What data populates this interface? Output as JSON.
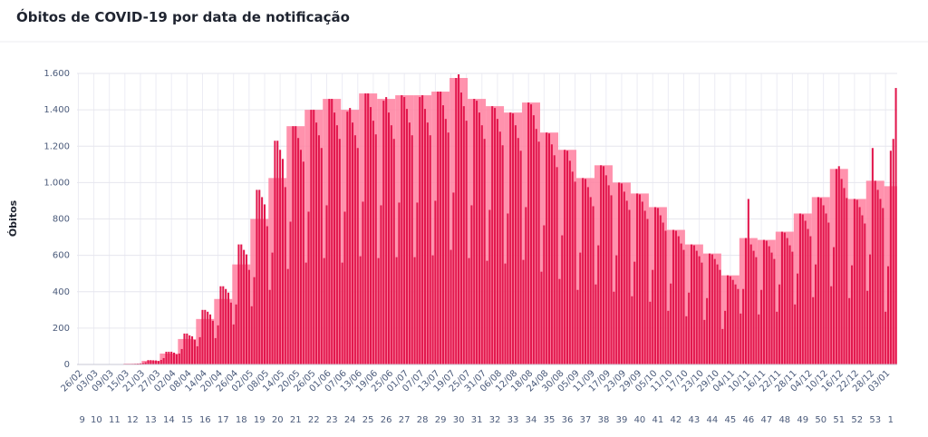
{
  "chart_data": {
    "type": "bar",
    "title": "Óbitos de COVID-19 por data de notificação",
    "y_label": "Óbitos",
    "ylim": [
      0,
      1600
    ],
    "yticks": [
      0,
      200,
      400,
      600,
      800,
      {
        "value": 1000,
        "label": "1.000"
      },
      {
        "value": 1200,
        "label": "1.200"
      },
      {
        "value": 1400,
        "label": "1.400"
      },
      {
        "value": 1600,
        "label": "1.600"
      }
    ],
    "grid": true,
    "categories": [
      "26/02",
      null,
      null,
      null,
      null,
      null,
      "03/03",
      null,
      null,
      null,
      null,
      null,
      "09/03",
      null,
      null,
      null,
      null,
      null,
      "15/03",
      null,
      null,
      null,
      null,
      null,
      "21/03",
      null,
      null,
      null,
      null,
      null,
      "27/03",
      null,
      null,
      null,
      null,
      null,
      "02/04",
      null,
      null,
      null,
      null,
      null,
      "08/04",
      null,
      null,
      null,
      null,
      null,
      "14/04",
      null,
      null,
      null,
      null,
      null,
      "20/04",
      null,
      null,
      null,
      null,
      null,
      "26/04",
      null,
      null,
      null,
      null,
      null,
      "02/05",
      null,
      null,
      null,
      null,
      null,
      "08/05",
      null,
      null,
      null,
      null,
      null,
      "14/05",
      null,
      null,
      null,
      null,
      null,
      "20/05",
      null,
      null,
      null,
      null,
      null,
      "26/05",
      null,
      null,
      null,
      null,
      null,
      "01/06",
      null,
      null,
      null,
      null,
      null,
      "07/06",
      null,
      null,
      null,
      null,
      null,
      "13/06",
      null,
      null,
      null,
      null,
      null,
      "19/06",
      null,
      null,
      null,
      null,
      null,
      "25/06",
      null,
      null,
      null,
      null,
      null,
      "01/07",
      null,
      null,
      null,
      null,
      null,
      "07/07",
      null,
      null,
      null,
      null,
      null,
      "13/07",
      null,
      null,
      null,
      null,
      null,
      "19/07",
      null,
      null,
      null,
      null,
      null,
      "25/07",
      null,
      null,
      null,
      null,
      null,
      "31/07",
      null,
      null,
      null,
      null,
      null,
      "06/08",
      null,
      null,
      null,
      null,
      null,
      "12/08",
      null,
      null,
      null,
      null,
      null,
      "18/08",
      null,
      null,
      null,
      null,
      null,
      "24/08",
      null,
      null,
      null,
      null,
      null,
      "30/08",
      null,
      null,
      null,
      null,
      null,
      "05/09",
      null,
      null,
      null,
      null,
      null,
      "11/09",
      null,
      null,
      null,
      null,
      null,
      "17/09",
      null,
      null,
      null,
      null,
      null,
      "23/09",
      null,
      null,
      null,
      null,
      null,
      "29/09",
      null,
      null,
      null,
      null,
      null,
      "05/10",
      null,
      null,
      null,
      null,
      null,
      "11/10",
      null,
      null,
      null,
      null,
      null,
      "17/10",
      null,
      null,
      null,
      null,
      null,
      "23/10",
      null,
      null,
      null,
      null,
      null,
      "29/10",
      null,
      null,
      null,
      null,
      null,
      "04/11",
      null,
      null,
      null,
      null,
      null,
      "10/11",
      null,
      null,
      null,
      null,
      null,
      "16/11",
      null,
      null,
      null,
      null,
      null,
      "22/11",
      null,
      null,
      null,
      null,
      null,
      "28/11",
      null,
      null,
      null,
      null,
      null,
      "04/12",
      null,
      null,
      null,
      null,
      null,
      "10/12",
      null,
      null,
      null,
      null,
      null,
      "16/12",
      null,
      null,
      null,
      null,
      null,
      "22/12",
      null,
      null,
      null,
      null,
      null,
      "28/12",
      null,
      null,
      null,
      null,
      null,
      "03/01",
      null,
      null,
      null,
      null
    ],
    "values": [
      0,
      0,
      0,
      0,
      0,
      0,
      0,
      0,
      0,
      0,
      0,
      0,
      0,
      0,
      0,
      0,
      0,
      0,
      0,
      1,
      2,
      3,
      4,
      5,
      6,
      8,
      12,
      24,
      24,
      23,
      22,
      19,
      25,
      35,
      70,
      70,
      70,
      65,
      55,
      60,
      85,
      170,
      170,
      160,
      155,
      135,
      100,
      150,
      300,
      300,
      290,
      275,
      240,
      145,
      215,
      430,
      430,
      415,
      395,
      340,
      220,
      330,
      660,
      660,
      630,
      605,
      520,
      320,
      480,
      960,
      960,
      920,
      880,
      760,
      410,
      615,
      1230,
      1230,
      1180,
      1130,
      975,
      525,
      785,
      1310,
      1310,
      1245,
      1180,
      1115,
      560,
      840,
      1400,
      1400,
      1330,
      1260,
      1190,
      585,
      875,
      1460,
      1460,
      1385,
      1315,
      1240,
      560,
      840,
      1390,
      1410,
      1330,
      1260,
      1190,
      595,
      895,
      1490,
      1490,
      1415,
      1340,
      1265,
      585,
      875,
      1450,
      1470,
      1385,
      1315,
      1240,
      590,
      890,
      1480,
      1470,
      1405,
      1330,
      1260,
      590,
      890,
      1470,
      1480,
      1405,
      1330,
      1260,
      600,
      900,
      1500,
      1500,
      1425,
      1350,
      1275,
      630,
      945,
      1575,
      1595,
      1495,
      1420,
      1340,
      585,
      875,
      1460,
      1450,
      1385,
      1315,
      1240,
      570,
      850,
      1420,
      1410,
      1350,
      1280,
      1205,
      555,
      830,
      1385,
      1380,
      1315,
      1245,
      1175,
      575,
      865,
      1440,
      1430,
      1370,
      1295,
      1225,
      510,
      765,
      1275,
      1270,
      1210,
      1150,
      1085,
      470,
      710,
      1180,
      1175,
      1120,
      1060,
      1005,
      410,
      615,
      1025,
      1020,
      975,
      920,
      870,
      440,
      655,
      1095,
      1090,
      1040,
      985,
      930,
      400,
      600,
      1000,
      995,
      950,
      900,
      850,
      375,
      565,
      940,
      935,
      895,
      845,
      800,
      345,
      520,
      865,
      860,
      820,
      780,
      735,
      295,
      445,
      740,
      735,
      705,
      665,
      630,
      265,
      395,
      660,
      655,
      625,
      595,
      560,
      245,
      365,
      610,
      605,
      580,
      550,
      520,
      195,
      295,
      490,
      485,
      465,
      440,
      415,
      280,
      415,
      695,
      910,
      660,
      625,
      590,
      275,
      410,
      685,
      680,
      650,
      615,
      580,
      290,
      440,
      730,
      725,
      695,
      655,
      620,
      330,
      500,
      830,
      825,
      790,
      745,
      705,
      370,
      550,
      920,
      915,
      875,
      830,
      780,
      430,
      645,
      1075,
      1090,
      1020,
      970,
      915,
      365,
      545,
      910,
      905,
      865,
      820,
      775,
      405,
      605,
      1190,
      1010,
      960,
      910,
      860,
      290,
      540,
      1175,
      1240,
      1520
    ],
    "color": "#e2174d",
    "weekly": {
      "categories": [
        "9",
        "10",
        "11",
        "12",
        "13",
        "14",
        "15",
        "16",
        "17",
        "18",
        "19",
        "20",
        "21",
        "22",
        "23",
        "24",
        "25",
        "26",
        "27",
        "28",
        "29",
        "30",
        "31",
        "32",
        "33",
        "34",
        "35",
        "36",
        "37",
        "38",
        "39",
        "40",
        "41",
        "42",
        "43",
        "44",
        "45",
        "46",
        "47",
        "48",
        "49",
        "50",
        "51",
        "52",
        "53",
        "1"
      ],
      "values": [
        0,
        0,
        0,
        5,
        20,
        60,
        140,
        250,
        360,
        550,
        800,
        1025,
        1310,
        1400,
        1460,
        1400,
        1490,
        1460,
        1480,
        1480,
        1500,
        1575,
        1460,
        1420,
        1385,
        1440,
        1275,
        1180,
        1025,
        1095,
        1000,
        940,
        865,
        740,
        660,
        610,
        490,
        695,
        685,
        730,
        830,
        920,
        1075,
        910,
        1010,
        980
      ],
      "color": "#ff7f9f"
    }
  }
}
